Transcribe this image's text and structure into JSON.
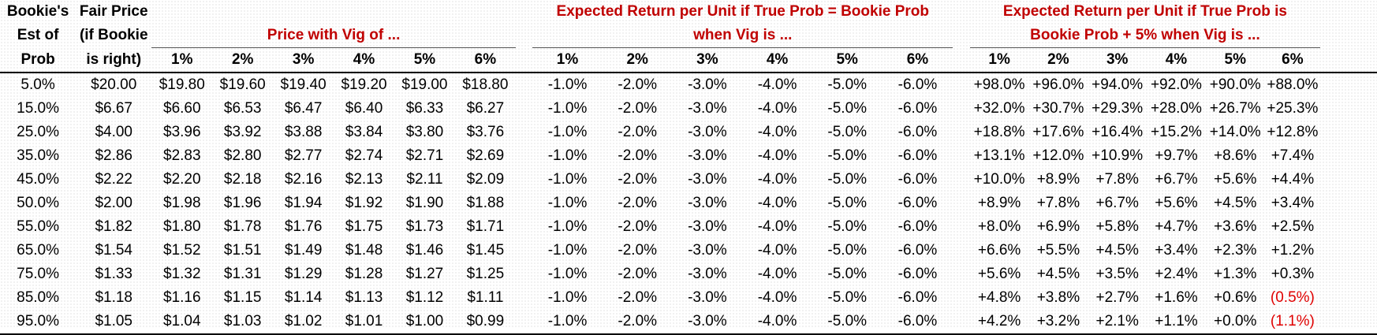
{
  "headers": {
    "col_bookie_est": [
      "Bookie's",
      "Est of",
      "Prob"
    ],
    "col_fair_price": [
      "Fair Price",
      "(if Bookie",
      "is right)"
    ],
    "group_price_with_vig": "Price with Vig of ...",
    "group_expected_return_equal": [
      "Expected Return per Unit if True Prob = Bookie Prob",
      "when Vig is ..."
    ],
    "group_expected_return_plus5": [
      "Expected Return per Unit if True Prob is",
      "Bookie Prob + 5% when Vig is ..."
    ],
    "vig_levels": [
      "1%",
      "2%",
      "3%",
      "4%",
      "5%",
      "6%"
    ]
  },
  "rows": [
    {
      "est": "5.0%",
      "fair": "$20.00",
      "prices": [
        "$19.80",
        "$19.60",
        "$19.40",
        "$19.20",
        "$19.00",
        "$18.80"
      ],
      "ret_equal": [
        "-1.0%",
        "-2.0%",
        "-3.0%",
        "-4.0%",
        "-5.0%",
        "-6.0%"
      ],
      "ret_plus5": [
        "+98.0%",
        "+96.0%",
        "+94.0%",
        "+92.0%",
        "+90.0%",
        "+88.0%"
      ]
    },
    {
      "est": "15.0%",
      "fair": "$6.67",
      "prices": [
        "$6.60",
        "$6.53",
        "$6.47",
        "$6.40",
        "$6.33",
        "$6.27"
      ],
      "ret_equal": [
        "-1.0%",
        "-2.0%",
        "-3.0%",
        "-4.0%",
        "-5.0%",
        "-6.0%"
      ],
      "ret_plus5": [
        "+32.0%",
        "+30.7%",
        "+29.3%",
        "+28.0%",
        "+26.7%",
        "+25.3%"
      ]
    },
    {
      "est": "25.0%",
      "fair": "$4.00",
      "prices": [
        "$3.96",
        "$3.92",
        "$3.88",
        "$3.84",
        "$3.80",
        "$3.76"
      ],
      "ret_equal": [
        "-1.0%",
        "-2.0%",
        "-3.0%",
        "-4.0%",
        "-5.0%",
        "-6.0%"
      ],
      "ret_plus5": [
        "+18.8%",
        "+17.6%",
        "+16.4%",
        "+15.2%",
        "+14.0%",
        "+12.8%"
      ]
    },
    {
      "est": "35.0%",
      "fair": "$2.86",
      "prices": [
        "$2.83",
        "$2.80",
        "$2.77",
        "$2.74",
        "$2.71",
        "$2.69"
      ],
      "ret_equal": [
        "-1.0%",
        "-2.0%",
        "-3.0%",
        "-4.0%",
        "-5.0%",
        "-6.0%"
      ],
      "ret_plus5": [
        "+13.1%",
        "+12.0%",
        "+10.9%",
        "+9.7%",
        "+8.6%",
        "+7.4%"
      ]
    },
    {
      "est": "45.0%",
      "fair": "$2.22",
      "prices": [
        "$2.20",
        "$2.18",
        "$2.16",
        "$2.13",
        "$2.11",
        "$2.09"
      ],
      "ret_equal": [
        "-1.0%",
        "-2.0%",
        "-3.0%",
        "-4.0%",
        "-5.0%",
        "-6.0%"
      ],
      "ret_plus5": [
        "+10.0%",
        "+8.9%",
        "+7.8%",
        "+6.7%",
        "+5.6%",
        "+4.4%"
      ]
    },
    {
      "est": "50.0%",
      "fair": "$2.00",
      "prices": [
        "$1.98",
        "$1.96",
        "$1.94",
        "$1.92",
        "$1.90",
        "$1.88"
      ],
      "ret_equal": [
        "-1.0%",
        "-2.0%",
        "-3.0%",
        "-4.0%",
        "-5.0%",
        "-6.0%"
      ],
      "ret_plus5": [
        "+8.9%",
        "+7.8%",
        "+6.7%",
        "+5.6%",
        "+4.5%",
        "+3.4%"
      ]
    },
    {
      "est": "55.0%",
      "fair": "$1.82",
      "prices": [
        "$1.80",
        "$1.78",
        "$1.76",
        "$1.75",
        "$1.73",
        "$1.71"
      ],
      "ret_equal": [
        "-1.0%",
        "-2.0%",
        "-3.0%",
        "-4.0%",
        "-5.0%",
        "-6.0%"
      ],
      "ret_plus5": [
        "+8.0%",
        "+6.9%",
        "+5.8%",
        "+4.7%",
        "+3.6%",
        "+2.5%"
      ]
    },
    {
      "est": "65.0%",
      "fair": "$1.54",
      "prices": [
        "$1.52",
        "$1.51",
        "$1.49",
        "$1.48",
        "$1.46",
        "$1.45"
      ],
      "ret_equal": [
        "-1.0%",
        "-2.0%",
        "-3.0%",
        "-4.0%",
        "-5.0%",
        "-6.0%"
      ],
      "ret_plus5": [
        "+6.6%",
        "+5.5%",
        "+4.5%",
        "+3.4%",
        "+2.3%",
        "+1.2%"
      ]
    },
    {
      "est": "75.0%",
      "fair": "$1.33",
      "prices": [
        "$1.32",
        "$1.31",
        "$1.29",
        "$1.28",
        "$1.27",
        "$1.25"
      ],
      "ret_equal": [
        "-1.0%",
        "-2.0%",
        "-3.0%",
        "-4.0%",
        "-5.0%",
        "-6.0%"
      ],
      "ret_plus5": [
        "+5.6%",
        "+4.5%",
        "+3.5%",
        "+2.4%",
        "+1.3%",
        "+0.3%"
      ]
    },
    {
      "est": "85.0%",
      "fair": "$1.18",
      "prices": [
        "$1.16",
        "$1.15",
        "$1.14",
        "$1.13",
        "$1.12",
        "$1.11"
      ],
      "ret_equal": [
        "-1.0%",
        "-2.0%",
        "-3.0%",
        "-4.0%",
        "-5.0%",
        "-6.0%"
      ],
      "ret_plus5": [
        "+4.8%",
        "+3.8%",
        "+2.7%",
        "+1.6%",
        "+0.6%",
        "(0.5%)"
      ]
    },
    {
      "est": "95.0%",
      "fair": "$1.05",
      "prices": [
        "$1.04",
        "$1.03",
        "$1.02",
        "$1.01",
        "$1.00",
        "$0.99"
      ],
      "ret_equal": [
        "-1.0%",
        "-2.0%",
        "-3.0%",
        "-4.0%",
        "-5.0%",
        "-6.0%"
      ],
      "ret_plus5": [
        "+4.2%",
        "+3.2%",
        "+2.1%",
        "+1.1%",
        "+0.0%",
        "(1.1%)"
      ]
    }
  ],
  "colors": {
    "header_red": "#c00000",
    "negative_red": "#e00000"
  }
}
